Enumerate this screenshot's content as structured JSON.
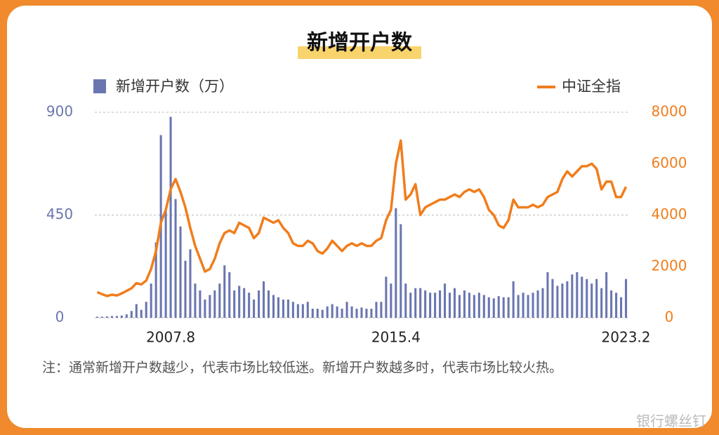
{
  "chart_data": {
    "type": "combo",
    "title": "新增开户数",
    "note": "注：通常新增开户数越少，代表市场比较低迷。新增开户数越多时，代表市场比较火热。",
    "categories": [
      null,
      null,
      null,
      null,
      null,
      null,
      null,
      null,
      null,
      null,
      null,
      null,
      null,
      null,
      null,
      "2007.8",
      null,
      null,
      null,
      null,
      null,
      null,
      null,
      null,
      null,
      null,
      null,
      null,
      null,
      null,
      null,
      null,
      null,
      null,
      null,
      null,
      null,
      null,
      null,
      null,
      null,
      null,
      null,
      null,
      null,
      null,
      null,
      null,
      null,
      null,
      null,
      null,
      null,
      null,
      null,
      null,
      null,
      null,
      null,
      null,
      null,
      "2015.4",
      null,
      null,
      null,
      null,
      null,
      null,
      null,
      null,
      null,
      null,
      null,
      null,
      null,
      null,
      null,
      null,
      null,
      null,
      null,
      null,
      null,
      null,
      null,
      null,
      null,
      null,
      null,
      null,
      null,
      null,
      null,
      null,
      null,
      null,
      null,
      null,
      null,
      null,
      null,
      null,
      null,
      null,
      null,
      null,
      null,
      null,
      "2023.2"
    ],
    "series": [
      {
        "name": "新增开户数（万）",
        "type": "bar",
        "color": "#6a76b0",
        "axis": "y",
        "values": [
          5,
          5,
          6,
          8,
          8,
          10,
          15,
          30,
          60,
          35,
          70,
          150,
          330,
          800,
          480,
          880,
          520,
          400,
          250,
          300,
          150,
          120,
          80,
          100,
          120,
          150,
          230,
          200,
          120,
          140,
          130,
          110,
          80,
          120,
          160,
          120,
          100,
          90,
          80,
          80,
          70,
          60,
          60,
          70,
          40,
          40,
          35,
          50,
          60,
          50,
          40,
          70,
          50,
          40,
          45,
          40,
          40,
          70,
          70,
          180,
          150,
          480,
          410,
          150,
          110,
          130,
          130,
          120,
          110,
          110,
          120,
          150,
          110,
          130,
          100,
          120,
          110,
          100,
          110,
          100,
          90,
          85,
          95,
          90,
          90,
          160,
          100,
          110,
          100,
          110,
          120,
          130,
          200,
          170,
          140,
          150,
          160,
          190,
          200,
          180,
          170,
          150,
          170,
          130,
          200,
          120,
          110,
          90,
          170
        ]
      },
      {
        "name": "中证全指",
        "type": "line",
        "color": "#f07d1c",
        "axis": "y2",
        "values": [
          1000,
          920,
          850,
          900,
          870,
          950,
          1050,
          1150,
          1350,
          1300,
          1450,
          1900,
          2600,
          3700,
          4200,
          5000,
          5400,
          4900,
          4300,
          3500,
          2800,
          2300,
          1800,
          1900,
          2300,
          2900,
          3300,
          3400,
          3300,
          3700,
          3600,
          3500,
          3100,
          3300,
          3900,
          3800,
          3700,
          3800,
          3500,
          3300,
          2900,
          2800,
          2800,
          3000,
          2900,
          2600,
          2500,
          2700,
          3000,
          2800,
          2600,
          2800,
          2900,
          2800,
          2900,
          2800,
          2800,
          3000,
          3100,
          3800,
          4200,
          6000,
          6900,
          4600,
          4800,
          5200,
          4000,
          4300,
          4400,
          4500,
          4600,
          4600,
          4700,
          4800,
          4700,
          4900,
          5000,
          4900,
          5000,
          4700,
          4200,
          4000,
          3600,
          3500,
          3800,
          4600,
          4300,
          4300,
          4300,
          4400,
          4300,
          4400,
          4700,
          4800,
          4900,
          5400,
          5700,
          5500,
          5700,
          5900,
          5900,
          6000,
          5800,
          5000,
          5300,
          5300,
          4700,
          4700,
          5100
        ]
      }
    ],
    "ylim": [
      0,
      900
    ],
    "yticks": [
      0,
      450,
      900
    ],
    "y2lim": [
      0,
      8000
    ],
    "y2ticks": [
      0,
      2000,
      4000,
      6000,
      8000
    ],
    "grid": true,
    "legend": "top"
  },
  "watermark": "银行螺丝钉"
}
